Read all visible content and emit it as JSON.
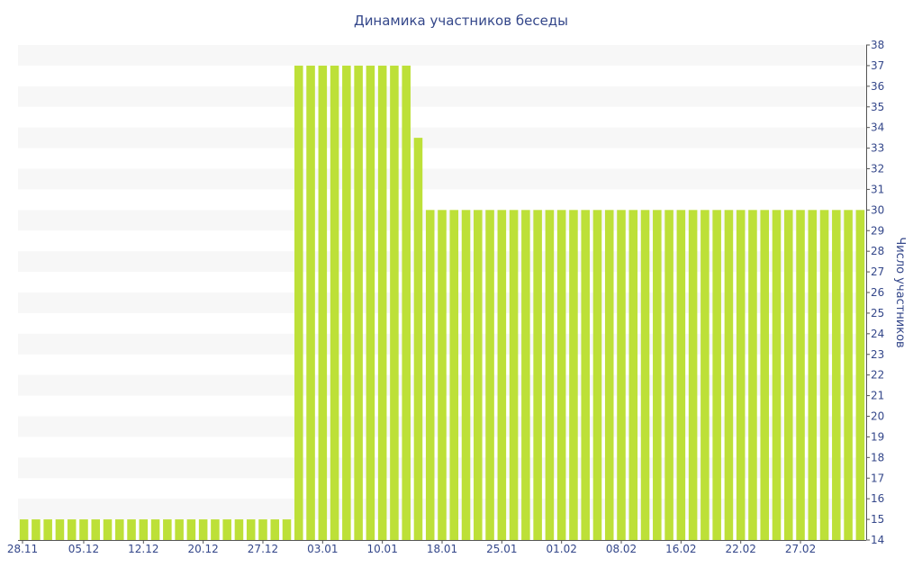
{
  "chart_data": {
    "type": "bar",
    "title": "Динамика участников беседы",
    "ylabel": "Число участников",
    "xlabel": "",
    "ylim": [
      14,
      38
    ],
    "yticks": [
      14,
      15,
      16,
      17,
      18,
      19,
      20,
      21,
      22,
      23,
      24,
      25,
      26,
      27,
      28,
      29,
      30,
      31,
      32,
      33,
      34,
      35,
      36,
      37,
      38
    ],
    "x_tick_labels": [
      "28.11",
      "05.12",
      "12.12",
      "20.12",
      "27.12",
      "03.01",
      "10.01",
      "18.01",
      "25.01",
      "01.02",
      "08.02",
      "16.02",
      "22.02",
      "27.02"
    ],
    "x_tick_positions": [
      0,
      5,
      10,
      15,
      20,
      25,
      30,
      35,
      40,
      45,
      50,
      55,
      60,
      65
    ],
    "values": [
      15,
      15,
      15,
      15,
      15,
      15,
      15,
      15,
      15,
      15,
      15,
      15,
      15,
      15,
      15,
      15,
      15,
      15,
      15,
      15,
      15,
      15,
      15,
      37,
      37,
      37,
      37,
      37,
      37,
      37,
      37,
      37,
      37,
      33.5,
      30,
      30,
      30,
      30,
      30,
      30,
      30,
      30,
      30,
      30,
      30,
      30,
      30,
      30,
      30,
      30,
      30,
      30,
      30,
      30,
      30,
      30,
      30,
      30,
      30,
      30,
      30,
      30,
      30,
      30,
      30,
      30,
      30,
      30,
      30,
      30,
      30
    ],
    "bar_color": "#bde038",
    "band_color": "#f7f7f7",
    "text_color": "#34478a",
    "y_axis_side": "right",
    "grid": "alternating-bands"
  }
}
